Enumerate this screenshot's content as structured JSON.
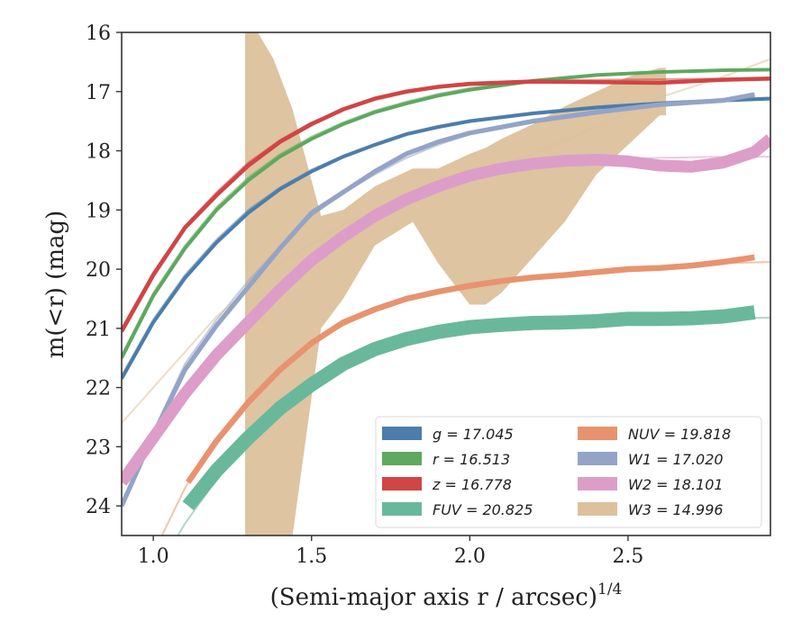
{
  "chart_data": {
    "type": "line",
    "xlabel": "(Semi-major axis r / arcsec)",
    "xlabel_sup": "1/4",
    "ylabel": "m(<r) (mag)",
    "xlim": [
      0.9,
      2.95
    ],
    "ylim": [
      24.5,
      16.0
    ],
    "y_inverted": true,
    "xticks": [
      "1.0",
      "1.5",
      "2.0",
      "2.5"
    ],
    "xtick_values": [
      1.0,
      1.5,
      2.0,
      2.5
    ],
    "yticks": [
      "16",
      "17",
      "18",
      "19",
      "20",
      "21",
      "22",
      "23",
      "24"
    ],
    "ytick_values": [
      16,
      17,
      18,
      19,
      20,
      21,
      22,
      23,
      24
    ],
    "legend_location": "lower-right",
    "series": [
      {
        "name": "g",
        "legend": "g = 17.045",
        "color": "#4c7dab",
        "band_halfwidth": 0.03,
        "x": [
          0.9,
          1.0,
          1.1,
          1.2,
          1.3,
          1.4,
          1.5,
          1.6,
          1.7,
          1.8,
          1.9,
          2.0,
          2.2,
          2.4,
          2.6,
          2.8,
          2.95
        ],
        "y": [
          21.85,
          20.9,
          20.15,
          19.55,
          19.05,
          18.65,
          18.35,
          18.1,
          17.9,
          17.72,
          17.6,
          17.5,
          17.37,
          17.27,
          17.2,
          17.15,
          17.12
        ],
        "model": [
          21.8,
          20.85,
          20.1,
          19.5,
          19.0,
          18.62,
          18.32,
          18.08,
          17.88,
          17.7,
          17.58,
          17.48,
          17.35,
          17.25,
          17.18,
          17.13,
          17.1
        ]
      },
      {
        "name": "r",
        "legend": "r = 16.513",
        "color": "#5ea85f",
        "band_halfwidth": 0.03,
        "x": [
          0.9,
          1.0,
          1.1,
          1.2,
          1.3,
          1.4,
          1.5,
          1.6,
          1.7,
          1.8,
          1.9,
          2.0,
          2.2,
          2.4,
          2.6,
          2.8,
          2.95
        ],
        "y": [
          21.5,
          20.45,
          19.65,
          19.0,
          18.5,
          18.1,
          17.8,
          17.55,
          17.35,
          17.2,
          17.07,
          16.97,
          16.82,
          16.72,
          16.67,
          16.64,
          16.63
        ],
        "model": [
          21.45,
          20.4,
          19.6,
          18.95,
          18.45,
          18.06,
          17.76,
          17.52,
          17.32,
          17.17,
          17.04,
          16.94,
          16.8,
          16.71,
          16.66,
          16.63,
          16.62
        ]
      },
      {
        "name": "z",
        "legend": "z = 16.778",
        "color": "#d04545",
        "band_halfwidth": 0.035,
        "x": [
          0.9,
          1.0,
          1.1,
          1.2,
          1.3,
          1.4,
          1.5,
          1.6,
          1.7,
          1.8,
          1.9,
          2.0,
          2.2,
          2.4,
          2.6,
          2.8,
          2.95
        ],
        "y": [
          21.05,
          20.1,
          19.3,
          18.75,
          18.25,
          17.85,
          17.55,
          17.3,
          17.12,
          17.0,
          16.92,
          16.87,
          16.83,
          16.84,
          16.85,
          16.8,
          16.78
        ],
        "model": [
          21.0,
          20.05,
          19.27,
          18.7,
          18.2,
          17.82,
          17.52,
          17.3,
          17.13,
          17.01,
          16.93,
          16.88,
          16.82,
          16.8,
          16.79,
          16.78,
          16.78
        ]
      },
      {
        "name": "FUV",
        "legend": "FUV = 20.825",
        "color": "#6ab89c",
        "band_halfwidth": 0.12,
        "x": [
          1.11,
          1.2,
          1.3,
          1.4,
          1.5,
          1.6,
          1.7,
          1.8,
          1.9,
          2.0,
          2.1,
          2.2,
          2.3,
          2.4,
          2.5,
          2.6,
          2.7,
          2.8,
          2.9
        ],
        "y": [
          24.0,
          23.4,
          22.85,
          22.35,
          21.95,
          21.6,
          21.35,
          21.18,
          21.06,
          20.98,
          20.94,
          20.91,
          20.9,
          20.88,
          20.84,
          20.84,
          20.83,
          20.8,
          20.73
        ],
        "model_x": [
          1.0,
          1.1,
          1.2,
          1.3,
          1.4,
          1.5,
          1.6,
          1.7,
          1.8,
          1.9,
          2.0,
          2.2,
          2.4,
          2.6,
          2.8,
          2.95
        ],
        "model": [
          25.2,
          24.3,
          23.55,
          22.9,
          22.4,
          22.0,
          21.65,
          21.38,
          21.2,
          21.08,
          21.0,
          20.92,
          20.87,
          20.84,
          20.83,
          20.82
        ]
      },
      {
        "name": "NUV",
        "legend": "NUV = 19.818",
        "color": "#e8936e",
        "band_halfwidth": 0.05,
        "x": [
          1.11,
          1.2,
          1.3,
          1.4,
          1.5,
          1.6,
          1.7,
          1.8,
          1.9,
          2.0,
          2.1,
          2.2,
          2.3,
          2.4,
          2.5,
          2.6,
          2.7,
          2.8,
          2.9
        ],
        "y": [
          23.6,
          22.9,
          22.25,
          21.7,
          21.25,
          20.9,
          20.68,
          20.5,
          20.38,
          20.28,
          20.2,
          20.14,
          20.1,
          20.05,
          20.0,
          19.98,
          19.94,
          19.88,
          19.8
        ],
        "model_x": [
          1.0,
          1.1,
          1.2,
          1.3,
          1.4,
          1.5,
          1.6,
          1.7,
          1.8,
          1.9,
          2.0,
          2.2,
          2.4,
          2.6,
          2.8,
          2.95
        ],
        "model": [
          24.8,
          23.7,
          22.85,
          22.2,
          21.68,
          21.26,
          20.95,
          20.7,
          20.52,
          20.38,
          20.28,
          20.12,
          20.02,
          19.95,
          19.9,
          19.88
        ]
      },
      {
        "name": "W1",
        "legend": "W1 = 17.020",
        "color": "#93a4c6",
        "band_halfwidth": 0.04,
        "x": [
          0.9,
          1.0,
          1.1,
          1.2,
          1.3,
          1.4,
          1.5,
          1.6,
          1.7,
          1.8,
          1.9,
          2.0,
          2.2,
          2.4,
          2.6,
          2.8,
          2.9
        ],
        "y": [
          24.0,
          22.8,
          21.7,
          20.95,
          20.3,
          19.65,
          19.05,
          18.7,
          18.35,
          18.05,
          17.85,
          17.7,
          17.5,
          17.35,
          17.22,
          17.15,
          17.05
        ],
        "model": [
          24.0,
          22.75,
          21.6,
          20.85,
          20.2,
          19.62,
          19.1,
          18.72,
          18.4,
          18.12,
          17.9,
          17.72,
          17.48,
          17.33,
          17.22,
          17.12,
          17.08
        ]
      },
      {
        "name": "W2",
        "legend": "W2 = 18.101",
        "color": "#dc9ec8",
        "band_halfwidth": 0.1,
        "x": [
          0.9,
          1.0,
          1.1,
          1.2,
          1.3,
          1.4,
          1.5,
          1.6,
          1.7,
          1.8,
          1.9,
          2.0,
          2.1,
          2.2,
          2.3,
          2.4,
          2.5,
          2.6,
          2.7,
          2.8,
          2.9,
          2.95
        ],
        "y": [
          23.6,
          22.85,
          22.1,
          21.45,
          20.9,
          20.35,
          19.85,
          19.45,
          19.1,
          18.82,
          18.6,
          18.42,
          18.3,
          18.22,
          18.17,
          18.15,
          18.18,
          18.25,
          18.27,
          18.2,
          18.02,
          17.8
        ],
        "model_x": [
          0.9,
          1.0,
          1.2,
          1.4,
          1.6,
          1.8,
          2.0,
          2.2,
          2.4,
          2.6,
          2.8,
          2.95
        ],
        "model": [
          23.6,
          22.8,
          21.4,
          20.3,
          19.45,
          18.82,
          18.45,
          18.25,
          18.15,
          18.12,
          18.1,
          18.1
        ]
      },
      {
        "name": "W3",
        "legend": "W3 = 14.996",
        "color": "#dcc19c",
        "band_x": [
          1.29,
          1.33,
          1.38,
          1.44,
          1.53,
          1.6,
          1.7,
          1.82,
          1.9,
          2.0,
          2.05,
          2.1,
          2.2,
          2.3,
          2.4,
          2.5,
          2.6,
          2.62
        ],
        "band_upper": [
          16.0,
          16.0,
          16.45,
          17.3,
          19.1,
          19.0,
          18.6,
          18.3,
          18.3,
          18.05,
          17.95,
          17.8,
          17.55,
          17.25,
          17.0,
          16.75,
          16.6,
          16.6
        ],
        "band_lower": [
          24.5,
          24.5,
          24.5,
          24.5,
          21.0,
          20.5,
          19.6,
          19.2,
          19.9,
          20.6,
          20.6,
          20.4,
          19.8,
          19.2,
          18.4,
          17.9,
          17.4,
          17.4
        ],
        "model_x": [
          0.9,
          1.0,
          1.2,
          1.4,
          1.6,
          1.8,
          2.0,
          2.2,
          2.4,
          2.6,
          2.8,
          2.95
        ],
        "model": [
          22.6,
          22.0,
          20.8,
          19.9,
          19.25,
          18.8,
          18.4,
          18.05,
          17.6,
          17.1,
          16.75,
          16.45
        ]
      }
    ]
  }
}
